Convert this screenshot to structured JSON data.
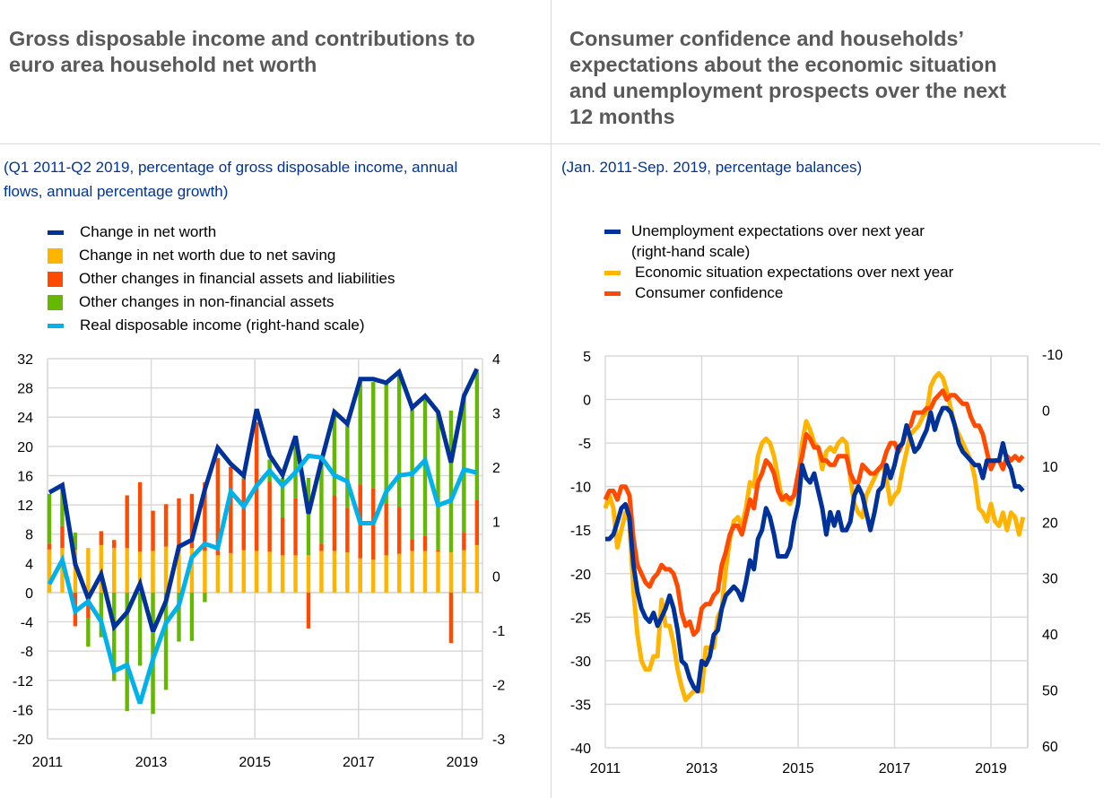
{
  "panels": [
    {
      "title": "Gross disposable income and contributions to euro area household net worth",
      "title_lines": [
        "Gross disposable income and contributions to",
        "euro area household net worth"
      ],
      "subtitle_lines": [
        "(Q1 2011-Q2 2019, percentage of gross disposable income, annual",
        "flows, annual percentage growth)"
      ]
    },
    {
      "title": "Consumer confidence and households’ expectations about the economic situation and unemployment prospects over the next 12 months",
      "title_lines": [
        "Consumer confidence and households’",
        "expectations about the economic situation",
        "and unemployment prospects over the next",
        "12 months"
      ],
      "subtitle_lines": [
        "(Jan. 2011-Sep. 2019, percentage balances)"
      ]
    }
  ],
  "colors": {
    "dark_blue": "#003299",
    "yellow": "#FFB400",
    "orange": "#FF4B00",
    "green": "#65B800",
    "light_blue": "#00B1EA",
    "grid": "#d9d9d9",
    "title": "#595959",
    "subtitle": "#003399"
  },
  "chart_data": [
    {
      "type": "bar",
      "stacked": true,
      "title": "Gross disposable income and contributions to euro area household net worth",
      "frequency": "quarterly",
      "start": "Q1 2011",
      "end": "Q2 2019",
      "x_tick_labels": [
        "2011",
        "2013",
        "2015",
        "2017",
        "2019"
      ],
      "ylim": [
        -20,
        32
      ],
      "y_ticks": [
        32,
        28,
        24,
        20,
        16,
        12,
        8,
        4,
        0,
        -4,
        -8,
        -12,
        -16,
        -20
      ],
      "y2lim": [
        -3,
        4
      ],
      "y2_ticks": [
        4,
        3,
        2,
        1,
        0,
        -1,
        -2,
        -3
      ],
      "grid": true,
      "legend": [
        {
          "label": "Change in net worth",
          "kind": "line",
          "color": "#003299"
        },
        {
          "label": "Change in net worth due to net saving",
          "kind": "bar",
          "color": "#FFB400"
        },
        {
          "label": "Other changes in financial assets and liabilities",
          "kind": "bar",
          "color": "#FF4B00"
        },
        {
          "label": "Other changes in non-financial assets",
          "kind": "bar",
          "color": "#65B800"
        },
        {
          "label": "Real disposable income (right-hand scale)",
          "kind": "line",
          "color": "#00B1EA"
        }
      ],
      "series": [
        {
          "name": "Change in net worth due to net saving",
          "kind": "bar",
          "values": [
            5.9,
            6.1,
            5.8,
            6.1,
            6.5,
            6.1,
            6.1,
            5.6,
            5.7,
            6.3,
            5.7,
            6.1,
            5.7,
            5.1,
            5.4,
            5.8,
            5.7,
            5.6,
            5.1,
            5.1,
            5.1,
            5.7,
            5.7,
            5.5,
            4.7,
            4.5,
            5.1,
            5.3,
            5.7,
            5.7,
            5.6,
            5.5,
            5.8,
            6.5
          ]
        },
        {
          "name": "Other changes in financial assets and liabilities",
          "kind": "bar",
          "values": [
            0.8,
            3.0,
            -4.6,
            -3.5,
            1.9,
            1.1,
            7.2,
            9.5,
            5.5,
            5.8,
            7.2,
            7.4,
            9.4,
            13.3,
            11.8,
            9.7,
            17.6,
            9.6,
            5.2,
            7.8,
            -4.9,
            1.0,
            7.6,
            6.1,
            10.1,
            9.8,
            7.1,
            6.4,
            1.6,
            2.1,
            0.2,
            -6.9,
            2.4,
            6.2
          ]
        },
        {
          "name": "Other changes in non-financial assets",
          "kind": "bar",
          "values": [
            6.8,
            5.4,
            2.4,
            -3.9,
            -6.1,
            -12.1,
            -16.2,
            -10.0,
            -16.6,
            -13.3,
            -6.7,
            -6.6,
            -1.3,
            0.0,
            0.0,
            0.5,
            0.0,
            3.0,
            5.4,
            7.1,
            10.6,
            12.1,
            11.4,
            11.3,
            14.2,
            14.5,
            16.4,
            18.3,
            17.8,
            18.7,
            18.7,
            19.4,
            18.5,
            17.5
          ]
        },
        {
          "name": "Change in net worth",
          "kind": "line",
          "axis": "left",
          "values": [
            13.7,
            14.7,
            3.9,
            -0.8,
            2.5,
            -4.7,
            -2.7,
            1.2,
            -5.3,
            -1.2,
            6.3,
            7.2,
            14.1,
            19.8,
            17.6,
            16.0,
            25.1,
            18.8,
            16.1,
            21.4,
            10.8,
            18.0,
            24.7,
            23.1,
            29.2,
            29.2,
            28.7,
            30.2,
            25.3,
            26.9,
            24.7,
            17.8,
            26.9,
            30.6
          ]
        },
        {
          "name": "Real disposable income (right-hand scale)",
          "kind": "line",
          "axis": "right",
          "values": [
            -0.15,
            0.29,
            -0.65,
            -0.47,
            -0.84,
            -1.75,
            -1.64,
            -2.35,
            -1.53,
            -0.87,
            -0.54,
            0.34,
            0.59,
            0.51,
            1.55,
            1.28,
            1.66,
            1.94,
            1.66,
            1.91,
            2.21,
            2.18,
            1.85,
            1.74,
            0.97,
            0.97,
            1.55,
            1.85,
            1.88,
            2.13,
            1.3,
            1.39,
            1.96,
            1.9
          ]
        }
      ]
    },
    {
      "type": "line",
      "title": "Consumer confidence and households’ expectations about the economic situation and unemployment prospects over the next 12 months",
      "frequency": "monthly",
      "start": "Jan 2011",
      "end": "Sep 2019",
      "x_tick_labels": [
        "2011",
        "2013",
        "2015",
        "2017",
        "2019"
      ],
      "ylim": [
        -40,
        5
      ],
      "y_ticks": [
        5,
        0,
        -5,
        -10,
        -15,
        -20,
        -25,
        -30,
        -35,
        -40
      ],
      "y2lim": [
        -10,
        60
      ],
      "y2_inverted": true,
      "y2_ticks": [
        -10,
        0,
        10,
        20,
        30,
        40,
        50,
        60
      ],
      "grid": true,
      "legend": [
        {
          "label": "Unemployment expectations over next year",
          "label2": "(right-hand scale)",
          "color": "#003299"
        },
        {
          "label": "Economic situation expectations over next year",
          "color": "#FFB400"
        },
        {
          "label": "Consumer confidence",
          "color": "#FF4B00"
        }
      ],
      "series": [
        {
          "name": "Economic situation expectations over next year",
          "axis": "left",
          "values": [
            -12.5,
            -11,
            -12.5,
            -17,
            -15,
            -13,
            -14,
            -22,
            -27,
            -30,
            -31,
            -31,
            -29.5,
            -29.5,
            -23,
            -26,
            -26,
            -28,
            -31,
            -33,
            -34.5,
            -34,
            -33.5,
            -33.5,
            -33.5,
            -28.5,
            -28.5,
            -28.5,
            -25,
            -24,
            -19.5,
            -16,
            -14,
            -13.5,
            -14.5,
            -12.5,
            -9.5,
            -10,
            -6.5,
            -5,
            -4.5,
            -5,
            -6.5,
            -9,
            -11.5,
            -11.5,
            -12,
            -11,
            -9,
            -5,
            -2.5,
            -3.5,
            -5,
            -5.5,
            -8,
            -6,
            -5.5,
            -6,
            -5,
            -4.5,
            -5,
            -9,
            -12,
            -13,
            -13.5,
            -11,
            -10,
            -9,
            -8,
            -7.5,
            -9,
            -12,
            -11,
            -10.5,
            -8,
            -6,
            -4,
            -3.5,
            -3,
            -2,
            -1.5,
            1.5,
            2.5,
            3,
            2.5,
            1,
            -1,
            -3,
            -4,
            -5,
            -6,
            -7,
            -9,
            -12.5,
            -13,
            -14,
            -12,
            -14,
            -14.5,
            -13,
            -15,
            -13,
            -13.5,
            -15.5,
            -13.5
          ]
        },
        {
          "name": "Consumer confidence",
          "axis": "left",
          "values": [
            -11.5,
            -10.5,
            -10.5,
            -11.5,
            -10,
            -10,
            -11,
            -16,
            -19,
            -20,
            -21,
            -21.5,
            -20.5,
            -20,
            -19,
            -19.5,
            -19.5,
            -20,
            -21.5,
            -24.5,
            -26,
            -25.5,
            -27,
            -26.5,
            -24,
            -23.5,
            -23.5,
            -22.5,
            -22,
            -19,
            -17.5,
            -15.5,
            -14.5,
            -14.5,
            -15.5,
            -13.5,
            -11.5,
            -12.5,
            -9.5,
            -8.5,
            -7,
            -7.5,
            -8.5,
            -10.5,
            -11.5,
            -11,
            -11.5,
            -11,
            -8.5,
            -6.5,
            -4,
            -4.5,
            -5.5,
            -5.5,
            -7,
            -7,
            -7.5,
            -7.5,
            -6.5,
            -6.5,
            -6.5,
            -8.5,
            -9.5,
            -9.5,
            -7.5,
            -8,
            -8.5,
            -8.5,
            -8,
            -7.5,
            -6,
            -5,
            -5,
            -6,
            -5,
            -3.5,
            -3,
            -1.5,
            -1.5,
            -1.5,
            -1,
            -1,
            0,
            0.5,
            1,
            0,
            0.5,
            0.5,
            0,
            -0.5,
            -0.5,
            -2,
            -3,
            -3,
            -4,
            -6,
            -8,
            -7,
            -7,
            -8,
            -6.5,
            -7,
            -6.5,
            -7,
            -6.5
          ]
        },
        {
          "name": "Unemployment expectations over next year (right-hand scale)",
          "axis": "right",
          "values": [
            22.7,
            22.7,
            21.9,
            19.7,
            17.2,
            16.5,
            18.8,
            27.4,
            32.1,
            35.1,
            36.7,
            37.5,
            35.9,
            38.2,
            36.7,
            35.1,
            32.8,
            35.1,
            39.0,
            44.5,
            45.2,
            47.6,
            49.1,
            49.9,
            44.5,
            45.2,
            43.7,
            39.8,
            39.0,
            35.1,
            32.8,
            32.0,
            31.2,
            32.0,
            33.6,
            30.4,
            26.5,
            28.1,
            22.7,
            21.1,
            17.2,
            18.8,
            21.9,
            25.8,
            25.8,
            25.8,
            24.2,
            19.6,
            16.5,
            9.5,
            11.8,
            12.6,
            11.0,
            14.1,
            17.2,
            21.9,
            17.9,
            20.3,
            17.9,
            21.1,
            21.1,
            19.6,
            14.9,
            13.3,
            14.9,
            18.0,
            21.1,
            18.0,
            14.1,
            13.3,
            9.5,
            11.8,
            9.5,
            6.3,
            5.6,
            2.4,
            4.7,
            7.1,
            6.3,
            4.7,
            3.2,
            0.1,
            3.2,
            0.9,
            -0.7,
            -0.7,
            0.1,
            2.4,
            5.6,
            7.1,
            7.9,
            8.7,
            9.5,
            9.5,
            11.8,
            8.7,
            8.7,
            8.7,
            8.7,
            5.6,
            8.7,
            10.2,
            13.3,
            13.3,
            14.1
          ]
        }
      ]
    }
  ]
}
